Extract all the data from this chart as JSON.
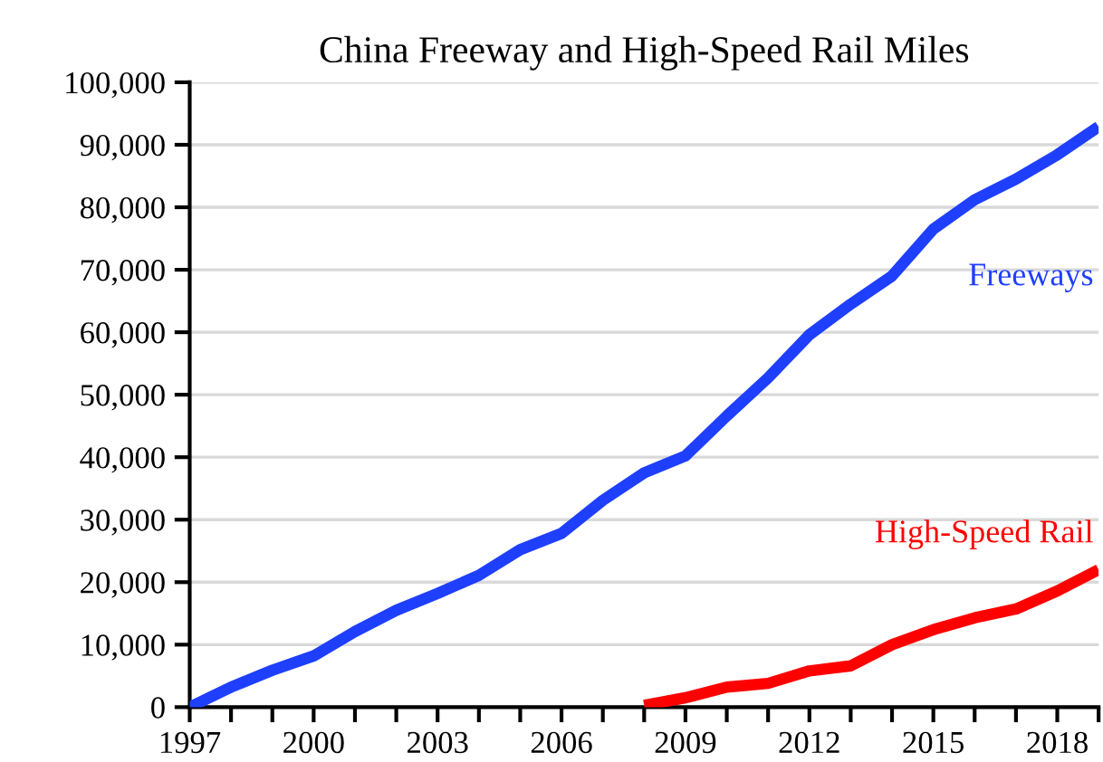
{
  "chart_data": {
    "type": "line",
    "title": "China Freeway and High-Speed Rail Miles",
    "xlim": [
      1997,
      2019
    ],
    "ylim": [
      0,
      100000
    ],
    "xticks": [
      1997,
      {
        "value": 1998,
        "label": null
      },
      {
        "value": 1999,
        "label": null
      },
      2000,
      {
        "value": 2001,
        "label": null
      },
      {
        "value": 2002,
        "label": null
      },
      2003,
      {
        "value": 2004,
        "label": null
      },
      {
        "value": 2005,
        "label": null
      },
      2006,
      {
        "value": 2007,
        "label": null
      },
      {
        "value": 2008,
        "label": null
      },
      2009,
      {
        "value": 2010,
        "label": null
      },
      {
        "value": 2011,
        "label": null
      },
      2012,
      {
        "value": 2013,
        "label": null
      },
      {
        "value": 2014,
        "label": null
      },
      2015,
      {
        "value": 2016,
        "label": null
      },
      {
        "value": 2017,
        "label": null
      },
      2018,
      {
        "value": 2019,
        "label": null
      }
    ],
    "yticks": [
      {
        "value": 0,
        "label": "0"
      },
      {
        "value": 10000,
        "label": "10,000"
      },
      {
        "value": 20000,
        "label": "20,000"
      },
      {
        "value": 30000,
        "label": "30,000"
      },
      {
        "value": 40000,
        "label": "40,000"
      },
      {
        "value": 50000,
        "label": "50,000"
      },
      {
        "value": 60000,
        "label": "60,000"
      },
      {
        "value": 70000,
        "label": "70,000"
      },
      {
        "value": 80000,
        "label": "80,000"
      },
      {
        "value": 90000,
        "label": "90,000"
      },
      {
        "value": 100000,
        "label": "100,000"
      }
    ],
    "grid": "y",
    "marker": "none",
    "line_style": "solid",
    "series": [
      {
        "name": "Freeways",
        "color": "#1f3fff",
        "x": [
          1997,
          1998,
          1999,
          2000,
          2001,
          2002,
          2003,
          2004,
          2005,
          2006,
          2007,
          2008,
          2009,
          2010,
          2011,
          2012,
          2013,
          2014,
          2015,
          2016,
          2017,
          2018,
          2019
        ],
        "values": [
          0,
          3200,
          5900,
          8200,
          12100,
          15500,
          18200,
          21100,
          25200,
          27800,
          33100,
          37500,
          40200,
          46600,
          52700,
          59600,
          64500,
          69000,
          76500,
          81200,
          84500,
          88400,
          92900
        ]
      },
      {
        "name": "High-Speed Rail",
        "color": "#ff0000",
        "x": [
          2008,
          2009,
          2010,
          2011,
          2012,
          2013,
          2014,
          2015,
          2016,
          2017,
          2018,
          2019
        ],
        "values": [
          300,
          1500,
          3200,
          3800,
          5800,
          6600,
          10000,
          12400,
          14300,
          15700,
          18600,
          22000
        ]
      }
    ]
  }
}
